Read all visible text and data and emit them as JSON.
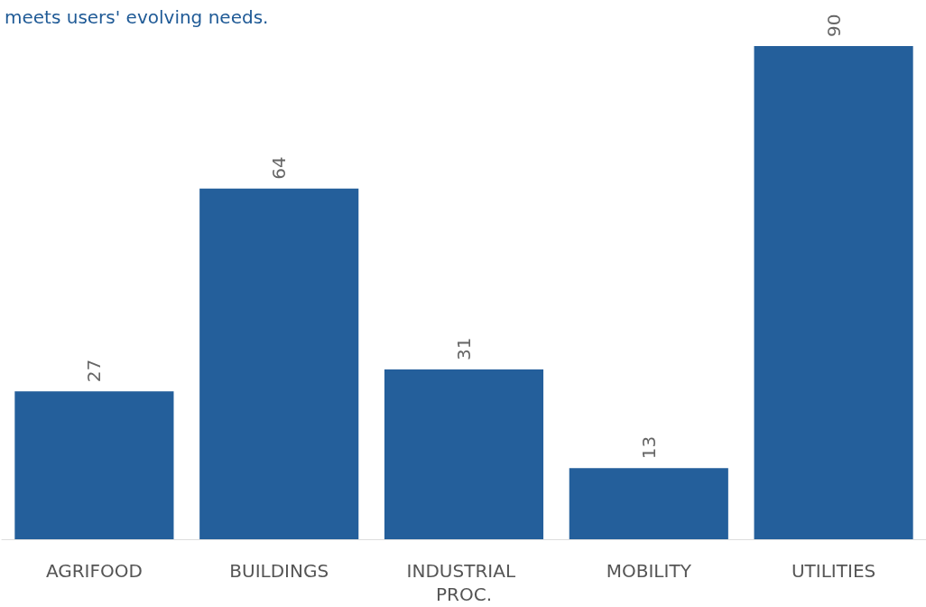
{
  "chart_data": {
    "type": "bar",
    "title": "meets users' evolving needs.",
    "categories": [
      "AGRIFOOD",
      "BUILDINGS",
      "INDUSTRIAL PROC.",
      "MOBILITY",
      "UTILITIES"
    ],
    "values": [
      27,
      64,
      31,
      13,
      90
    ],
    "color": "#245f9b",
    "data_labels": true
  }
}
